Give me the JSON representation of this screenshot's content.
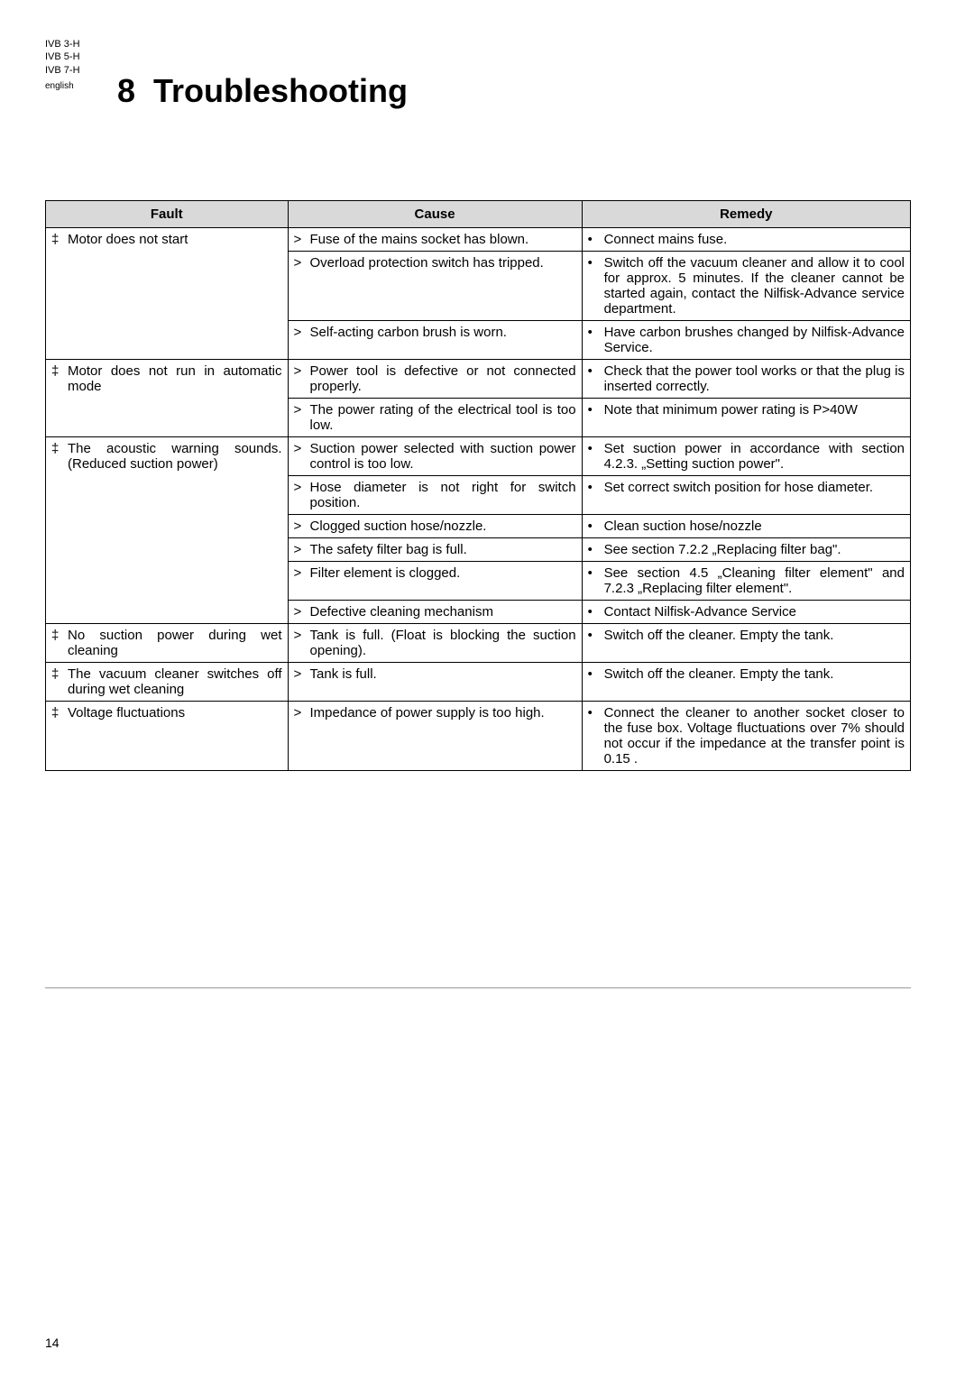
{
  "header": {
    "models": [
      "IVB 3-H",
      "IVB 5-H",
      "IVB 7-H"
    ],
    "language": "english",
    "section_number": "8",
    "section_title": "Troubleshooting",
    "page_number": "14"
  },
  "table": {
    "columns": [
      "Fault",
      "Cause",
      "Remedy"
    ],
    "groups": [
      {
        "fault": "Motor does not start",
        "rows": [
          {
            "cause": "Fuse of the mains socket has blown.",
            "remedy": "Connect mains fuse."
          },
          {
            "cause": "Overload protection switch has tripped.",
            "remedy": "Switch off the vacuum cleaner and allow it to cool for approx. 5 minutes. If the cleaner cannot be started again, contact the Nilfisk-Advance service department."
          },
          {
            "cause": "Self-acting carbon brush is worn.",
            "remedy": "Have carbon brushes changed by Nilfisk-Advance Service."
          }
        ]
      },
      {
        "fault": "Motor does not run in automatic mode",
        "rows": [
          {
            "cause": "Power tool is defective or not connected properly.",
            "remedy": "Check that the power tool works or that the plug is inserted correctly."
          },
          {
            "cause": "The power rating of the electrical tool is too low.",
            "remedy": "Note that minimum power rating is P>40W"
          }
        ]
      },
      {
        "fault": "The acoustic warning sounds. (Reduced suction power)",
        "rows": [
          {
            "cause": "Suction power selected with suction power control is too low.",
            "remedy": "Set suction power in accordance with section 4.2.3. „Setting suction power\"."
          },
          {
            "cause": "Hose diameter is not right for switch position.",
            "remedy": "Set correct switch position for hose diameter."
          },
          {
            "cause": "Clogged suction hose/nozzle.",
            "remedy": "Clean suction hose/nozzle"
          },
          {
            "cause": "The safety filter bag is full.",
            "remedy": "See section 7.2.2 „Replacing filter bag\"."
          },
          {
            "cause": "Filter element is clogged.",
            "remedy": "See section 4.5 „Cleaning filter element\" and 7.2.3 „Replacing filter element\"."
          },
          {
            "cause": "Defective cleaning mechanism",
            "remedy": "Contact Nilfisk-Advance Service"
          }
        ]
      },
      {
        "fault": "No suction power during wet cleaning",
        "rows": [
          {
            "cause": "Tank is full. (Float is blocking the suction opening).",
            "remedy": "Switch off the cleaner. Empty the tank."
          }
        ]
      },
      {
        "fault": "The vacuum cleaner switches off during wet cleaning",
        "rows": [
          {
            "cause": "Tank is full.",
            "remedy": "Switch off the cleaner. Empty the tank."
          }
        ]
      },
      {
        "fault": "Voltage fluctuations",
        "rows": [
          {
            "cause": "Impedance of power supply is too high.",
            "remedy": "Connect the cleaner to another socket closer to the fuse box. Voltage fluctuations over 7% should not occur if the impedance at the transfer point is 0.15  ."
          }
        ]
      }
    ],
    "markers": {
      "fault": "‡",
      "cause": ">",
      "remedy": "•"
    }
  },
  "style": {
    "background": "#ffffff",
    "text_color": "#000000",
    "header_bg": "#d9d9d9",
    "border_color": "#000000"
  }
}
